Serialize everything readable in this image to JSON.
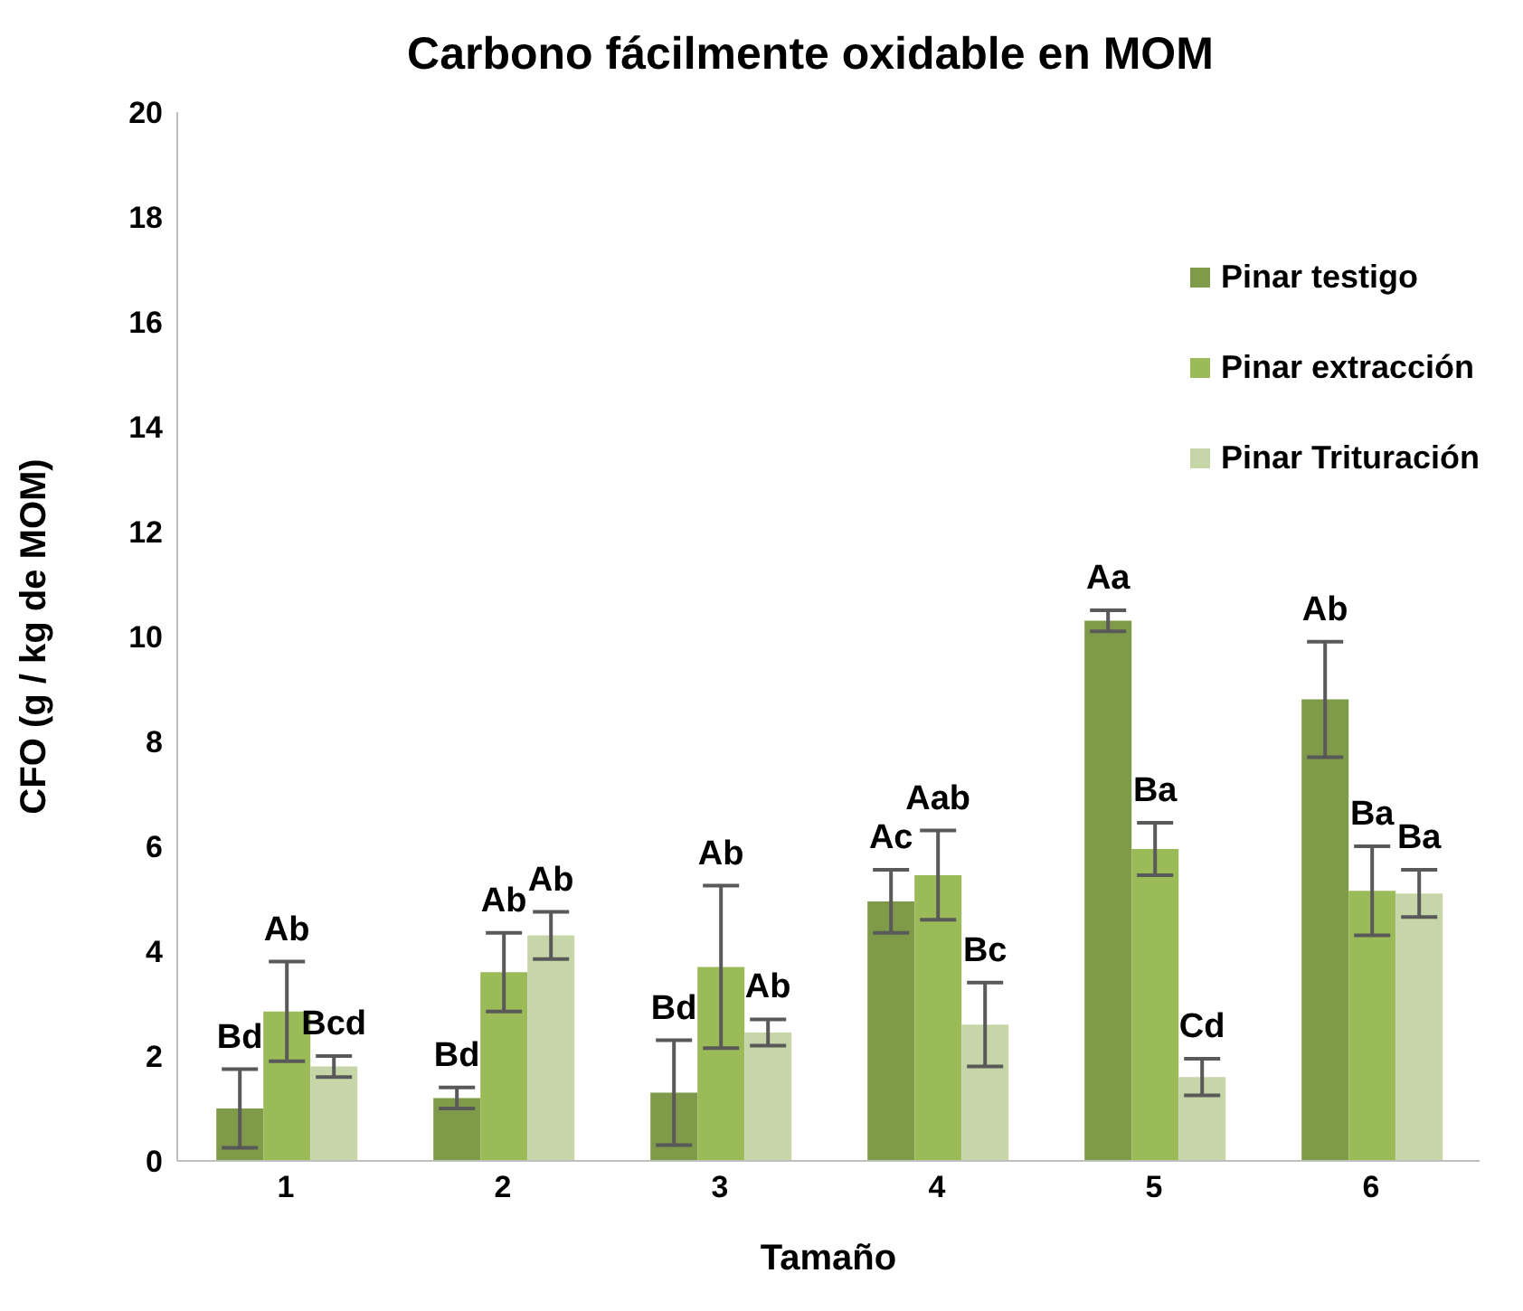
{
  "chart_data": {
    "type": "bar",
    "title": "Carbono fácilmente oxidable en MOM",
    "xlabel": "Tamaño",
    "ylabel": "CFO (g / kg de MOM)",
    "categories": [
      "1",
      "2",
      "3",
      "4",
      "5",
      "6"
    ],
    "series": [
      {
        "name": "Pinar testigo",
        "color": "#7f9a48",
        "values": [
          1.0,
          1.2,
          1.3,
          4.95,
          10.3,
          8.8
        ],
        "errors": [
          0.75,
          0.2,
          1.0,
          0.6,
          0.2,
          1.1
        ],
        "value_labels": [
          "Bd",
          "Bd",
          "Bd",
          "Ac",
          "Aa",
          "Ab"
        ]
      },
      {
        "name": "Pinar extracción",
        "color": "#9bbb59",
        "values": [
          2.85,
          3.6,
          3.7,
          5.45,
          5.95,
          5.15
        ],
        "errors": [
          0.95,
          0.75,
          1.55,
          0.85,
          0.5,
          0.85
        ],
        "value_labels": [
          "Ab",
          "Ab",
          "Ab",
          "Aab",
          "Ba",
          "Ba"
        ]
      },
      {
        "name": "Pinar Trituración",
        "color": "#c6d6a9",
        "values": [
          1.8,
          4.3,
          2.45,
          2.6,
          1.6,
          5.1
        ],
        "errors": [
          0.2,
          0.45,
          0.25,
          0.8,
          0.35,
          0.45
        ],
        "value_labels": [
          "Bcd",
          "Ab",
          "Ab",
          "Bc",
          "Cd",
          "Ba"
        ]
      }
    ],
    "ylim": [
      0,
      20
    ],
    "yticks": [
      0,
      2,
      4,
      6,
      8,
      10,
      12,
      14,
      16,
      18,
      20
    ],
    "grid": false,
    "legend": "top right"
  }
}
